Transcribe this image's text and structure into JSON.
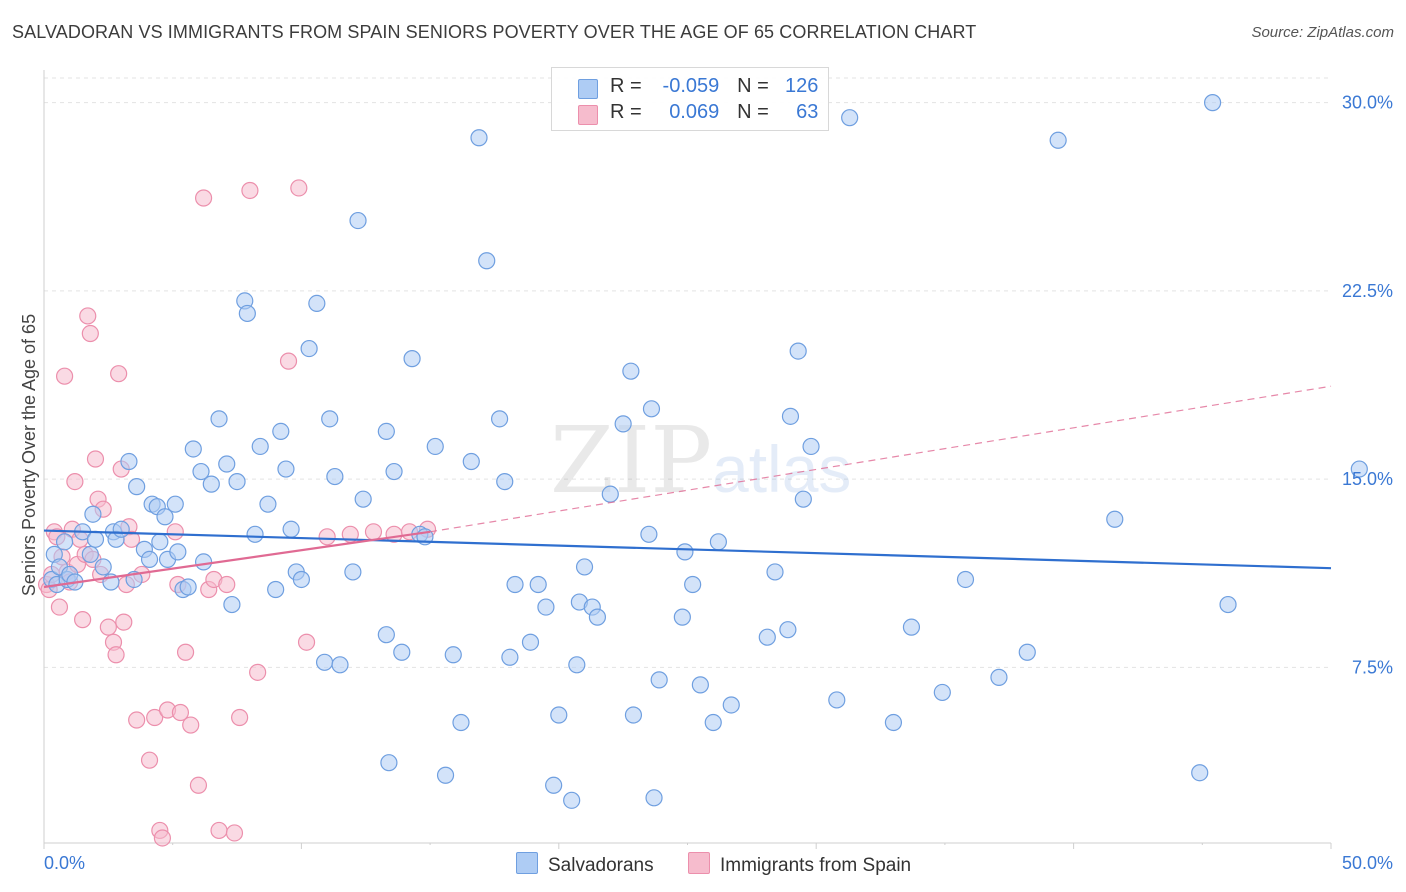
{
  "header": {
    "title": "SALVADORAN VS IMMIGRANTS FROM SPAIN SENIORS POVERTY OVER THE AGE OF 65 CORRELATION CHART",
    "source": "Source: ZipAtlas.com"
  },
  "watermark": {
    "big": "ZIP",
    "small": "atlas"
  },
  "legend": {
    "rows": [
      {
        "r_label": "R =",
        "r_value": "-0.059",
        "n_label": "N =",
        "n_value": "126"
      },
      {
        "r_label": "R =",
        "r_value": "0.069",
        "n_label": "N =",
        "n_value": "63"
      }
    ]
  },
  "bottom_legend": {
    "series_1": "Salvadorans",
    "series_2": "Immigrants from Spain"
  },
  "colors": {
    "blue_fill": "#aeccf4",
    "blue_stroke": "#6f9fe0",
    "blue_line": "#2f6fcf",
    "pink_fill": "#f6bccd",
    "pink_stroke": "#ec8fac",
    "pink_line": "#e06a93",
    "tick_label": "#3a78d4",
    "grid": "#e3e3e3"
  },
  "chart_data": {
    "type": "scatter",
    "title": "SALVADORAN VS IMMIGRANTS FROM SPAIN SENIORS POVERTY OVER THE AGE OF 65 CORRELATION CHART",
    "xlabel": "",
    "ylabel": "Seniors Poverty Over the Age of 65",
    "xlim": [
      0,
      50
    ],
    "ylim": [
      0.5,
      31.3
    ],
    "x_tick_labels": [
      "0.0%",
      "50.0%"
    ],
    "y_ticks": [
      7.5,
      15.0,
      22.5,
      30.0
    ],
    "y_tick_labels": [
      "7.5%",
      "15.0%",
      "22.5%",
      "30.0%"
    ],
    "grid": true,
    "legend_position": "top-center",
    "series": [
      {
        "name": "Salvadorans",
        "R": -0.059,
        "N": 126,
        "trend": {
          "x": [
            0,
            50
          ],
          "y": [
            12.95,
            11.45
          ]
        },
        "points": [
          [
            0.3,
            11.0
          ],
          [
            0.4,
            12.0
          ],
          [
            0.5,
            10.8
          ],
          [
            0.6,
            11.5
          ],
          [
            0.8,
            12.5
          ],
          [
            0.9,
            11.0
          ],
          [
            1.0,
            11.2
          ],
          [
            1.2,
            10.9
          ],
          [
            1.5,
            12.9
          ],
          [
            1.8,
            12.0
          ],
          [
            1.9,
            13.6
          ],
          [
            2.0,
            12.6
          ],
          [
            2.3,
            11.5
          ],
          [
            2.6,
            10.9
          ],
          [
            2.7,
            12.9
          ],
          [
            2.8,
            12.6
          ],
          [
            3.0,
            13.0
          ],
          [
            3.3,
            15.7
          ],
          [
            3.5,
            11.0
          ],
          [
            3.6,
            14.7
          ],
          [
            3.9,
            12.2
          ],
          [
            4.1,
            11.8
          ],
          [
            4.2,
            14.0
          ],
          [
            4.4,
            13.9
          ],
          [
            4.5,
            12.5
          ],
          [
            4.7,
            13.5
          ],
          [
            4.8,
            11.8
          ],
          [
            5.1,
            14.0
          ],
          [
            5.2,
            12.1
          ],
          [
            5.4,
            10.6
          ],
          [
            5.6,
            10.7
          ],
          [
            5.8,
            16.2
          ],
          [
            6.1,
            15.3
          ],
          [
            6.2,
            11.7
          ],
          [
            6.5,
            14.8
          ],
          [
            6.8,
            17.4
          ],
          [
            7.1,
            15.6
          ],
          [
            7.3,
            10.0
          ],
          [
            7.5,
            14.9
          ],
          [
            7.8,
            22.1
          ],
          [
            7.9,
            21.6
          ],
          [
            8.2,
            12.8
          ],
          [
            8.4,
            16.3
          ],
          [
            8.7,
            14.0
          ],
          [
            9.0,
            10.6
          ],
          [
            9.2,
            16.9
          ],
          [
            9.4,
            15.4
          ],
          [
            9.6,
            13.0
          ],
          [
            9.8,
            11.3
          ],
          [
            10.0,
            11.0
          ],
          [
            10.3,
            20.2
          ],
          [
            10.6,
            22.0
          ],
          [
            10.9,
            7.7
          ],
          [
            11.1,
            17.4
          ],
          [
            11.3,
            15.1
          ],
          [
            11.5,
            7.6
          ],
          [
            12.0,
            11.3
          ],
          [
            12.2,
            25.3
          ],
          [
            12.4,
            14.2
          ],
          [
            13.3,
            8.8
          ],
          [
            13.6,
            15.3
          ],
          [
            13.3,
            16.9
          ],
          [
            13.4,
            3.7
          ],
          [
            13.9,
            8.1
          ],
          [
            14.3,
            19.8
          ],
          [
            14.6,
            12.8
          ],
          [
            14.8,
            12.7
          ],
          [
            15.2,
            16.3
          ],
          [
            15.6,
            3.2
          ],
          [
            15.9,
            8.0
          ],
          [
            16.2,
            5.3
          ],
          [
            16.6,
            15.7
          ],
          [
            16.9,
            28.6
          ],
          [
            17.2,
            23.7
          ],
          [
            17.7,
            17.4
          ],
          [
            17.9,
            14.9
          ],
          [
            18.1,
            7.9
          ],
          [
            18.3,
            10.8
          ],
          [
            18.9,
            8.5
          ],
          [
            19.2,
            10.8
          ],
          [
            19.5,
            9.9
          ],
          [
            19.8,
            2.8
          ],
          [
            20.0,
            5.6
          ],
          [
            20.5,
            2.2
          ],
          [
            20.7,
            7.6
          ],
          [
            20.8,
            10.1
          ],
          [
            21.0,
            11.5
          ],
          [
            21.3,
            9.9
          ],
          [
            21.5,
            9.5
          ],
          [
            22.0,
            14.4
          ],
          [
            22.5,
            17.2
          ],
          [
            22.8,
            19.3
          ],
          [
            22.9,
            5.6
          ],
          [
            23.5,
            12.8
          ],
          [
            23.6,
            17.8
          ],
          [
            23.7,
            2.3
          ],
          [
            23.9,
            7.0
          ],
          [
            24.8,
            9.5
          ],
          [
            24.9,
            12.1
          ],
          [
            25.2,
            10.8
          ],
          [
            25.5,
            6.8
          ],
          [
            26.0,
            5.3
          ],
          [
            26.2,
            12.5
          ],
          [
            26.7,
            6.0
          ],
          [
            28.1,
            8.7
          ],
          [
            28.4,
            11.3
          ],
          [
            28.9,
            9.0
          ],
          [
            29.0,
            17.5
          ],
          [
            29.3,
            20.1
          ],
          [
            29.5,
            14.2
          ],
          [
            29.8,
            16.3
          ],
          [
            30.8,
            6.2
          ],
          [
            31.3,
            29.4
          ],
          [
            33.0,
            5.3
          ],
          [
            33.7,
            9.1
          ],
          [
            34.9,
            6.5
          ],
          [
            35.8,
            11.0
          ],
          [
            37.1,
            7.1
          ],
          [
            38.2,
            8.1
          ],
          [
            39.4,
            28.5
          ],
          [
            41.6,
            13.4
          ],
          [
            44.9,
            3.3
          ],
          [
            45.4,
            30.0
          ],
          [
            46.0,
            10.0
          ],
          [
            51.1,
            15.4
          ]
        ]
      },
      {
        "name": "Immigrants from Spain",
        "R": 0.069,
        "N": 63,
        "trend": {
          "x": [
            0,
            15
          ],
          "y": [
            10.7,
            12.9
          ]
        },
        "trend_extension": {
          "x": [
            15,
            50
          ],
          "y": [
            12.9,
            18.7
          ]
        },
        "points": [
          [
            0.1,
            10.8
          ],
          [
            0.2,
            10.6
          ],
          [
            0.3,
            11.2
          ],
          [
            0.4,
            12.9
          ],
          [
            0.5,
            12.7
          ],
          [
            0.6,
            9.9
          ],
          [
            0.7,
            11.9
          ],
          [
            0.8,
            19.1
          ],
          [
            0.9,
            11.3
          ],
          [
            1.0,
            10.9
          ],
          [
            1.1,
            13.0
          ],
          [
            1.2,
            14.9
          ],
          [
            1.3,
            11.6
          ],
          [
            1.4,
            12.6
          ],
          [
            1.5,
            9.4
          ],
          [
            1.6,
            12.0
          ],
          [
            1.7,
            21.5
          ],
          [
            1.8,
            20.8
          ],
          [
            1.9,
            11.8
          ],
          [
            2.0,
            15.8
          ],
          [
            2.1,
            14.2
          ],
          [
            2.2,
            11.2
          ],
          [
            2.3,
            13.8
          ],
          [
            2.5,
            9.1
          ],
          [
            2.7,
            8.5
          ],
          [
            2.8,
            8.0
          ],
          [
            2.9,
            19.2
          ],
          [
            3.0,
            15.4
          ],
          [
            3.1,
            9.3
          ],
          [
            3.2,
            10.8
          ],
          [
            3.3,
            13.1
          ],
          [
            3.4,
            12.6
          ],
          [
            3.6,
            5.4
          ],
          [
            3.8,
            11.2
          ],
          [
            4.1,
            3.8
          ],
          [
            4.3,
            5.5
          ],
          [
            4.5,
            1.0
          ],
          [
            4.6,
            0.7
          ],
          [
            4.8,
            5.8
          ],
          [
            5.1,
            12.9
          ],
          [
            5.2,
            10.8
          ],
          [
            5.3,
            5.7
          ],
          [
            5.5,
            8.1
          ],
          [
            5.7,
            5.2
          ],
          [
            6.0,
            2.8
          ],
          [
            6.2,
            26.2
          ],
          [
            6.4,
            10.6
          ],
          [
            6.6,
            11.0
          ],
          [
            6.8,
            1.0
          ],
          [
            7.1,
            10.8
          ],
          [
            7.4,
            0.9
          ],
          [
            7.6,
            5.5
          ],
          [
            8.0,
            26.5
          ],
          [
            8.3,
            7.3
          ],
          [
            9.5,
            19.7
          ],
          [
            9.9,
            26.6
          ],
          [
            10.2,
            8.5
          ],
          [
            11.0,
            12.7
          ],
          [
            11.9,
            12.8
          ],
          [
            12.8,
            12.9
          ],
          [
            13.6,
            12.8
          ],
          [
            14.2,
            12.9
          ],
          [
            14.9,
            13.0
          ]
        ]
      }
    ]
  }
}
